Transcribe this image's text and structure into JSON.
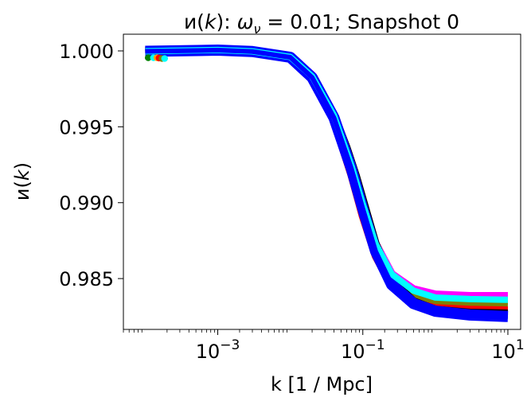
{
  "chart_data": {
    "type": "line",
    "title": {
      "prefix": "и(",
      "k": "k",
      "mid": "): ",
      "omega": "ω",
      "nu": "ν",
      "rest": " = 0.01; Snapshot 0"
    },
    "xlabel": "k [1 / Mpc]",
    "ylabel": {
      "prefix": "и(",
      "k": "k",
      "suffix": ")"
    },
    "xscale": "log",
    "xlim": [
      5e-05,
      15
    ],
    "ylim": [
      0.98165,
      1.0011
    ],
    "grid": false,
    "x_ticks": [
      {
        "value": 0.001,
        "base": "10",
        "exp": "−3"
      },
      {
        "value": 0.1,
        "base": "10",
        "exp": "−1"
      },
      {
        "value": 10,
        "base": "10",
        "exp": "1"
      }
    ],
    "y_ticks": [
      {
        "value": 1.0,
        "label": "1.000"
      },
      {
        "value": 0.995,
        "label": "0.995"
      },
      {
        "value": 0.99,
        "label": "0.990"
      },
      {
        "value": 0.985,
        "label": "0.985"
      }
    ],
    "series": [
      {
        "color": "#808000",
        "width": 10,
        "k": [
          0.0001,
          0.001,
          0.003,
          0.01,
          0.02,
          0.04,
          0.07,
          0.1,
          0.15,
          0.25,
          0.5,
          1,
          3,
          10
        ],
        "values": [
          0.99995,
          1.00005,
          0.99995,
          0.99955,
          0.99815,
          0.9955,
          0.9918,
          0.9892,
          0.9868,
          0.9848,
          0.9837,
          0.98345,
          0.98335,
          0.9833
        ]
      },
      {
        "color": "#ff00ff",
        "width": 10,
        "k": [
          0.0001,
          0.001,
          0.003,
          0.01,
          0.02,
          0.04,
          0.07,
          0.1,
          0.15,
          0.25,
          0.5,
          1,
          3,
          10
        ],
        "values": [
          0.99998,
          1.00008,
          1.0,
          0.99965,
          0.9984,
          0.9958,
          0.9924,
          0.9898,
          0.9873,
          0.9853,
          0.9843,
          0.98395,
          0.98385,
          0.98385
        ]
      },
      {
        "color": "#ff0000",
        "width": 10,
        "k": [
          0.0001,
          0.001,
          0.003,
          0.01,
          0.02,
          0.04,
          0.07,
          0.1,
          0.15,
          0.25,
          0.5,
          1,
          3,
          10
        ],
        "values": [
          0.99995,
          1.00002,
          0.99993,
          0.99955,
          0.9982,
          0.9954,
          0.9918,
          0.9891,
          0.9865,
          0.9845,
          0.9834,
          0.98305,
          0.98295,
          0.9829
        ]
      },
      {
        "color": "#000000",
        "width": 10,
        "k": [
          0.0001,
          0.001,
          0.003,
          0.01,
          0.02,
          0.04,
          0.06,
          0.08,
          0.1,
          0.15,
          0.25,
          0.5,
          1,
          3,
          10
        ],
        "values": [
          0.99998,
          1.00008,
          0.99998,
          0.9996,
          0.9983,
          0.9958,
          0.9936,
          0.9918,
          0.9902,
          0.9873,
          0.9849,
          0.9835,
          0.98295,
          0.98275,
          0.9827
        ]
      },
      {
        "color": "#0000ff",
        "width": 14,
        "k": [
          0.0001,
          0.001,
          0.003,
          0.01,
          0.02,
          0.04,
          0.07,
          0.1,
          0.15,
          0.25,
          0.5,
          1,
          3,
          10
        ],
        "values": [
          0.99997,
          1.00005,
          0.99996,
          0.99958,
          0.99825,
          0.9956,
          0.9922,
          0.9896,
          0.9868,
          0.9846,
          0.98335,
          0.98285,
          0.9826,
          0.9825
        ]
      },
      {
        "color": "#00ffff",
        "width": 8,
        "k": [
          0.0001,
          0.001,
          0.003,
          0.01,
          0.02,
          0.04,
          0.07,
          0.1,
          0.15,
          0.25,
          0.5,
          1,
          3,
          10
        ],
        "values": [
          0.99998,
          1.00006,
          0.99997,
          0.9996,
          0.99832,
          0.99575,
          0.9924,
          0.9899,
          0.9873,
          0.9853,
          0.9842,
          0.98375,
          0.98365,
          0.9836
        ]
      },
      {
        "color": "#0000ff",
        "width": 6,
        "k": [
          0.0001,
          0.001,
          0.003,
          0.01,
          0.02,
          0.04,
          0.07,
          0.1,
          0.15,
          0.25,
          0.5,
          1,
          3,
          10
        ],
        "values": [
          0.99997,
          1.00005,
          0.99996,
          0.99958,
          0.99825,
          0.9956,
          0.9922,
          0.9896,
          0.9868,
          0.9846,
          0.98335,
          0.98285,
          0.9826,
          0.9825
        ]
      }
    ],
    "markers": [
      {
        "k": 0.00011,
        "value": 0.99955,
        "color": "#008000"
      },
      {
        "k": 0.00013,
        "value": 0.99955,
        "color": "#00ffff"
      },
      {
        "k": 0.000145,
        "value": 0.99955,
        "color": "#ffa500"
      },
      {
        "k": 0.000155,
        "value": 0.99953,
        "color": "#ff0000"
      },
      {
        "k": 0.00017,
        "value": 0.9995,
        "color": "#808000"
      },
      {
        "k": 0.000185,
        "value": 0.9995,
        "color": "#00ffff"
      }
    ]
  }
}
